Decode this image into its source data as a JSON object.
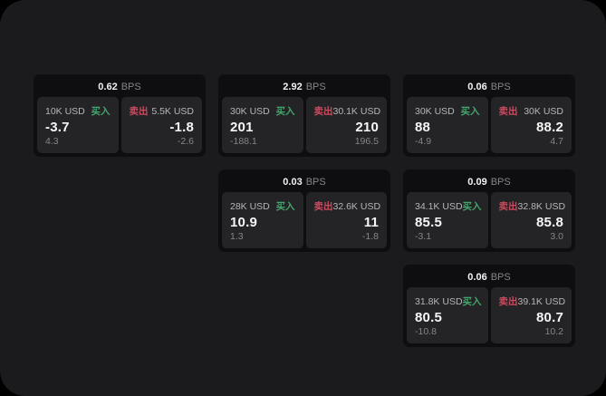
{
  "labels": {
    "bps_unit": "BPS",
    "buy": "买入",
    "sell": "卖出"
  },
  "colors": {
    "panel_bg": "#1b1b1d",
    "card_bg": "#0e0e10",
    "tile_bg": "#242427",
    "buy_green": "#42a56b",
    "sell_red": "#cb4a5e",
    "muted": "#85858a"
  },
  "cards": [
    {
      "bps": "0.62",
      "buy": {
        "amount": "10K USD",
        "price": "-3.7",
        "delta": "4.3"
      },
      "sell": {
        "amount": "5.5K USD",
        "price": "-1.8",
        "delta": "-2.6"
      }
    },
    {
      "bps": "2.92",
      "buy": {
        "amount": "30K USD",
        "price": "201",
        "delta": "-188.1"
      },
      "sell": {
        "amount": "30.1K USD",
        "price": "210",
        "delta": "196.5"
      }
    },
    {
      "bps": "0.06",
      "buy": {
        "amount": "30K USD",
        "price": "88",
        "delta": "-4.9"
      },
      "sell": {
        "amount": "30K USD",
        "price": "88.2",
        "delta": "4.7"
      }
    },
    {
      "bps": "0.03",
      "buy": {
        "amount": "28K USD",
        "price": "10.9",
        "delta": "1.3"
      },
      "sell": {
        "amount": "32.6K USD",
        "price": "11",
        "delta": "-1.8"
      }
    },
    {
      "bps": "0.09",
      "buy": {
        "amount": "34.1K USD",
        "price": "85.5",
        "delta": "-3.1"
      },
      "sell": {
        "amount": "32.8K USD",
        "price": "85.8",
        "delta": "3.0"
      }
    },
    {
      "bps": "0.06",
      "buy": {
        "amount": "31.8K USD",
        "price": "80.5",
        "delta": "-10.8"
      },
      "sell": {
        "amount": "39.1K USD",
        "price": "80.7",
        "delta": "10.2"
      }
    }
  ]
}
